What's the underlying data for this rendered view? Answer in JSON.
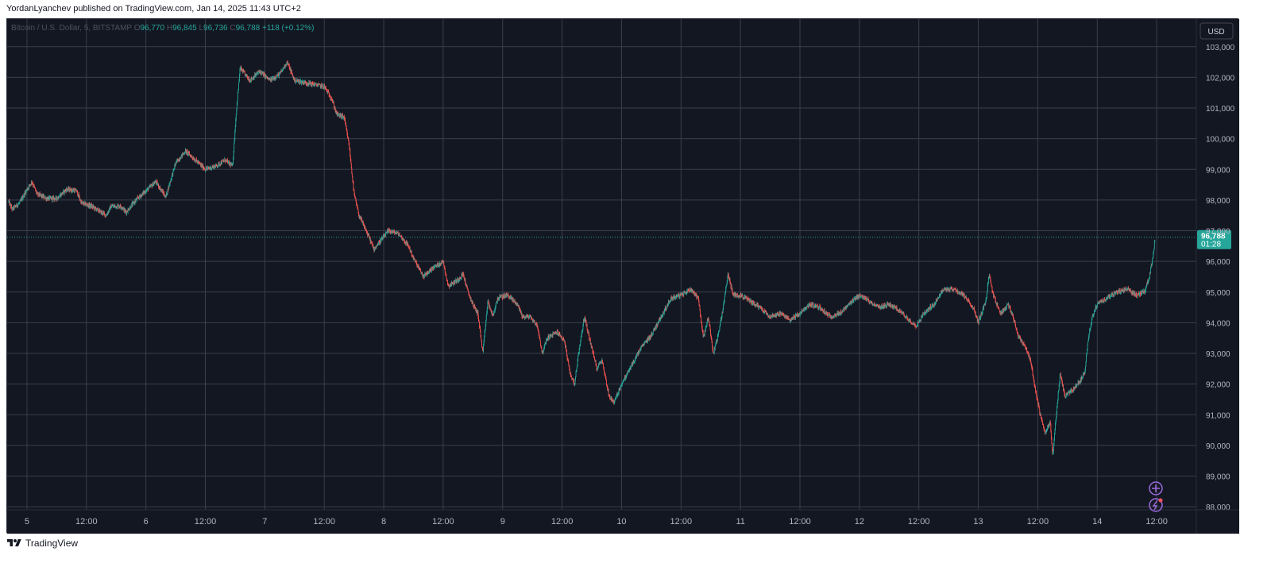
{
  "header": {
    "published": "YordanLyanchev published on TradingView.com, Jan 14, 2025 11:43 UTC+2"
  },
  "footer": {
    "brand": "TradingView"
  },
  "colors": {
    "background": "#131722",
    "grid": "#3a3f4b",
    "up": "#26a69a",
    "down": "#ef5350",
    "price_tag": "#26a69a",
    "text": "#b2b5be",
    "icon": "#9c6ade"
  },
  "icons": {
    "top_icon": "plus-circle-icon",
    "bottom_icon": "lightning-circle-icon",
    "brand_icon": "tradingview-logo-icon"
  },
  "chart_data": {
    "type": "candlestick",
    "legend": {
      "symbol": "Bitcoin / U.S. Dollar, 5, BITSTAMP",
      "o_label": "O",
      "o": "96,770",
      "h_label": "H",
      "h": "96,845",
      "l_label": "L",
      "l": "96,736",
      "c_label": "C",
      "c": "96,788",
      "change": "+118 (+0.12%)"
    },
    "currency_button": "USD",
    "ylim": [
      87900,
      103900
    ],
    "y_ticks": [
      "103,000",
      "102,000",
      "101,000",
      "100,000",
      "99,000",
      "98,000",
      "97,000",
      "96,000",
      "95,000",
      "94,000",
      "93,000",
      "92,000",
      "91,000",
      "90,000",
      "89,000",
      "88,000"
    ],
    "y_tick_values": [
      103000,
      102000,
      101000,
      100000,
      99000,
      98000,
      97000,
      96000,
      95000,
      94000,
      93000,
      92000,
      91000,
      90000,
      89000,
      88000
    ],
    "x_ticks": [
      "5",
      "12:00",
      "6",
      "12:00",
      "7",
      "12:00",
      "8",
      "12:00",
      "9",
      "12:00",
      "10",
      "12:00",
      "11",
      "12:00",
      "12",
      "12:00",
      "13",
      "12:00",
      "14",
      "12:00"
    ],
    "x_tick_hours": [
      0,
      12,
      24,
      36,
      48,
      60,
      72,
      84,
      96,
      108,
      120,
      132,
      144,
      156,
      168,
      180,
      192,
      204,
      216,
      228
    ],
    "x_range_hours": [
      -4,
      236
    ],
    "last_price": "96,788",
    "last_price_value": 96788,
    "countdown": "01:28",
    "price_path": [
      {
        "h": -3.7,
        "p": 97950
      },
      {
        "h": -3,
        "p": 97700
      },
      {
        "h": -1.5,
        "p": 97900
      },
      {
        "h": 0,
        "p": 98350
      },
      {
        "h": 1,
        "p": 98600
      },
      {
        "h": 2,
        "p": 98200
      },
      {
        "h": 4,
        "p": 98050
      },
      {
        "h": 6,
        "p": 98050
      },
      {
        "h": 8,
        "p": 98350
      },
      {
        "h": 10,
        "p": 98300
      },
      {
        "h": 11,
        "p": 97900
      },
      {
        "h": 13,
        "p": 97800
      },
      {
        "h": 15,
        "p": 97600
      },
      {
        "h": 16,
        "p": 97500
      },
      {
        "h": 17,
        "p": 97800
      },
      {
        "h": 19,
        "p": 97800
      },
      {
        "h": 20,
        "p": 97600
      },
      {
        "h": 22,
        "p": 98000
      },
      {
        "h": 24,
        "p": 98300
      },
      {
        "h": 26,
        "p": 98600
      },
      {
        "h": 28,
        "p": 98100
      },
      {
        "h": 30,
        "p": 99200
      },
      {
        "h": 32,
        "p": 99600
      },
      {
        "h": 34,
        "p": 99300
      },
      {
        "h": 36,
        "p": 99000
      },
      {
        "h": 38,
        "p": 99100
      },
      {
        "h": 40,
        "p": 99300
      },
      {
        "h": 41.5,
        "p": 99100
      },
      {
        "h": 42.2,
        "p": 100800
      },
      {
        "h": 43,
        "p": 102300
      },
      {
        "h": 45,
        "p": 101900
      },
      {
        "h": 47,
        "p": 102200
      },
      {
        "h": 49,
        "p": 101900
      },
      {
        "h": 51,
        "p": 102100
      },
      {
        "h": 52.5,
        "p": 102500
      },
      {
        "h": 54,
        "p": 101900
      },
      {
        "h": 57,
        "p": 101800
      },
      {
        "h": 60,
        "p": 101700
      },
      {
        "h": 61.5,
        "p": 101300
      },
      {
        "h": 62.5,
        "p": 100800
      },
      {
        "h": 64,
        "p": 100700
      },
      {
        "h": 65,
        "p": 99800
      },
      {
        "h": 66,
        "p": 98200
      },
      {
        "h": 67,
        "p": 97500
      },
      {
        "h": 69,
        "p": 96800
      },
      {
        "h": 70,
        "p": 96400
      },
      {
        "h": 71,
        "p": 96600
      },
      {
        "h": 73,
        "p": 97000
      },
      {
        "h": 75,
        "p": 96900
      },
      {
        "h": 77,
        "p": 96500
      },
      {
        "h": 78,
        "p": 96100
      },
      {
        "h": 80,
        "p": 95500
      },
      {
        "h": 82,
        "p": 95800
      },
      {
        "h": 84,
        "p": 96000
      },
      {
        "h": 85,
        "p": 95200
      },
      {
        "h": 87,
        "p": 95400
      },
      {
        "h": 88,
        "p": 95600
      },
      {
        "h": 89,
        "p": 95000
      },
      {
        "h": 90,
        "p": 94600
      },
      {
        "h": 91,
        "p": 94300
      },
      {
        "h": 92,
        "p": 93000
      },
      {
        "h": 93,
        "p": 94700
      },
      {
        "h": 94,
        "p": 94200
      },
      {
        "h": 95,
        "p": 94800
      },
      {
        "h": 97,
        "p": 94900
      },
      {
        "h": 99,
        "p": 94600
      },
      {
        "h": 100,
        "p": 94200
      },
      {
        "h": 101.5,
        "p": 94200
      },
      {
        "h": 103,
        "p": 93900
      },
      {
        "h": 104,
        "p": 93000
      },
      {
        "h": 105,
        "p": 93500
      },
      {
        "h": 107,
        "p": 93700
      },
      {
        "h": 108.5,
        "p": 93400
      },
      {
        "h": 109.5,
        "p": 92400
      },
      {
        "h": 110.5,
        "p": 92000
      },
      {
        "h": 111.5,
        "p": 93200
      },
      {
        "h": 112.5,
        "p": 94200
      },
      {
        "h": 113.5,
        "p": 93500
      },
      {
        "h": 115,
        "p": 92500
      },
      {
        "h": 116,
        "p": 92800
      },
      {
        "h": 117.5,
        "p": 91600
      },
      {
        "h": 118.5,
        "p": 91400
      },
      {
        "h": 120,
        "p": 92000
      },
      {
        "h": 122,
        "p": 92600
      },
      {
        "h": 124,
        "p": 93200
      },
      {
        "h": 126,
        "p": 93600
      },
      {
        "h": 128,
        "p": 94200
      },
      {
        "h": 130,
        "p": 94800
      },
      {
        "h": 132,
        "p": 94900
      },
      {
        "h": 134,
        "p": 95100
      },
      {
        "h": 135.5,
        "p": 94800
      },
      {
        "h": 136.5,
        "p": 93500
      },
      {
        "h": 137.5,
        "p": 94200
      },
      {
        "h": 138.5,
        "p": 93000
      },
      {
        "h": 139.5,
        "p": 93600
      },
      {
        "h": 140.5,
        "p": 94500
      },
      {
        "h": 141.5,
        "p": 95600
      },
      {
        "h": 142.5,
        "p": 94900
      },
      {
        "h": 144,
        "p": 94900
      },
      {
        "h": 146,
        "p": 94700
      },
      {
        "h": 148,
        "p": 94500
      },
      {
        "h": 150,
        "p": 94200
      },
      {
        "h": 152,
        "p": 94300
      },
      {
        "h": 154,
        "p": 94100
      },
      {
        "h": 156,
        "p": 94300
      },
      {
        "h": 158,
        "p": 94600
      },
      {
        "h": 160,
        "p": 94500
      },
      {
        "h": 162,
        "p": 94200
      },
      {
        "h": 164,
        "p": 94300
      },
      {
        "h": 166,
        "p": 94600
      },
      {
        "h": 168,
        "p": 94900
      },
      {
        "h": 170,
        "p": 94700
      },
      {
        "h": 172,
        "p": 94500
      },
      {
        "h": 174,
        "p": 94600
      },
      {
        "h": 176,
        "p": 94400
      },
      {
        "h": 178,
        "p": 94100
      },
      {
        "h": 179.5,
        "p": 93900
      },
      {
        "h": 181,
        "p": 94300
      },
      {
        "h": 183,
        "p": 94600
      },
      {
        "h": 185,
        "p": 95100
      },
      {
        "h": 187,
        "p": 95100
      },
      {
        "h": 189,
        "p": 94900
      },
      {
        "h": 191,
        "p": 94500
      },
      {
        "h": 192,
        "p": 94000
      },
      {
        "h": 193.5,
        "p": 94700
      },
      {
        "h": 194.2,
        "p": 95600
      },
      {
        "h": 195,
        "p": 94900
      },
      {
        "h": 196.5,
        "p": 94300
      },
      {
        "h": 198,
        "p": 94600
      },
      {
        "h": 199,
        "p": 94200
      },
      {
        "h": 200,
        "p": 93600
      },
      {
        "h": 201.5,
        "p": 93200
      },
      {
        "h": 202.5,
        "p": 92800
      },
      {
        "h": 203.5,
        "p": 91800
      },
      {
        "h": 204.5,
        "p": 91000
      },
      {
        "h": 205.5,
        "p": 90400
      },
      {
        "h": 206.5,
        "p": 90800
      },
      {
        "h": 207,
        "p": 89600
      },
      {
        "h": 207.5,
        "p": 90600
      },
      {
        "h": 208.5,
        "p": 92300
      },
      {
        "h": 209.5,
        "p": 91600
      },
      {
        "h": 211,
        "p": 91800
      },
      {
        "h": 212.5,
        "p": 92100
      },
      {
        "h": 213.5,
        "p": 92400
      },
      {
        "h": 214.2,
        "p": 93500
      },
      {
        "h": 215,
        "p": 94200
      },
      {
        "h": 216,
        "p": 94600
      },
      {
        "h": 218,
        "p": 94800
      },
      {
        "h": 220,
        "p": 95000
      },
      {
        "h": 222,
        "p": 95100
      },
      {
        "h": 224,
        "p": 94900
      },
      {
        "h": 225.5,
        "p": 95000
      },
      {
        "h": 226.5,
        "p": 95500
      },
      {
        "h": 227.2,
        "p": 96100
      },
      {
        "h": 227.7,
        "p": 96788
      }
    ]
  }
}
